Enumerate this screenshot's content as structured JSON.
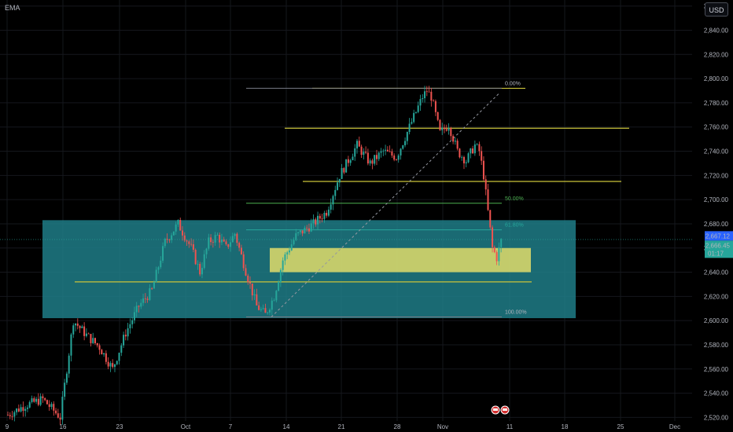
{
  "indicator": "EMA",
  "currency": "USD",
  "price_tag": {
    "value": "2,667.12",
    "color": "#2962ff"
  },
  "last_tag": {
    "value": "2,666.45",
    "time": "01:17",
    "color": "#26a69a"
  },
  "fib_labels": {
    "level_0": "0.00%",
    "level_50": "50.00%",
    "level_618": "61.80%",
    "level_100": "100.00%"
  },
  "colors": {
    "up": "#26a69a",
    "down": "#ef5350",
    "zone": "#1f7c87",
    "box": "#d6d66a",
    "line": "#c9c23a"
  },
  "chart_data": {
    "type": "candlestick",
    "y_ticks": [
      "2,520.00",
      "2,540.00",
      "2,560.00",
      "2,580.00",
      "2,600.00",
      "2,620.00",
      "2,640.00",
      "2,660.00",
      "2,680.00",
      "2,700.00",
      "2,720.00",
      "2,740.00",
      "2,760.00",
      "2,780.00",
      "2,800.00",
      "2,820.00",
      "2,840.00",
      "2,860.00"
    ],
    "y_tick_values": [
      2520,
      2540,
      2560,
      2580,
      2600,
      2620,
      2640,
      2660,
      2680,
      2700,
      2720,
      2740,
      2760,
      2780,
      2800,
      2820,
      2840,
      2860
    ],
    "ylim": [
      2517,
      2865
    ],
    "x_ticks": [
      "9",
      "16",
      "23",
      "Oct",
      "7",
      "14",
      "21",
      "28",
      "Nov",
      "11",
      "18",
      "25",
      "Dec"
    ],
    "price_path": [
      [
        0,
        2522
      ],
      [
        4,
        2530
      ],
      [
        8,
        2535
      ],
      [
        12,
        2520
      ],
      [
        15,
        2600
      ],
      [
        18,
        2588
      ],
      [
        21,
        2578
      ],
      [
        24,
        2560
      ],
      [
        27,
        2590
      ],
      [
        30,
        2612
      ],
      [
        33,
        2625
      ],
      [
        36,
        2665
      ],
      [
        39,
        2680
      ],
      [
        42,
        2660
      ],
      [
        44,
        2640
      ],
      [
        46,
        2665
      ],
      [
        48,
        2670
      ],
      [
        50,
        2660
      ],
      [
        52,
        2672
      ],
      [
        55,
        2635
      ],
      [
        57,
        2612
      ],
      [
        59,
        2605
      ],
      [
        61,
        2620
      ],
      [
        63,
        2650
      ],
      [
        66,
        2670
      ],
      [
        70,
        2680
      ],
      [
        73,
        2690
      ],
      [
        76,
        2720
      ],
      [
        80,
        2745
      ],
      [
        83,
        2730
      ],
      [
        86,
        2740
      ],
      [
        89,
        2735
      ],
      [
        92,
        2760
      ],
      [
        95,
        2785
      ],
      [
        96,
        2790
      ],
      [
        97,
        2785
      ],
      [
        99,
        2755
      ],
      [
        101,
        2762
      ],
      [
        103,
        2740
      ],
      [
        105,
        2732
      ],
      [
        107,
        2745
      ],
      [
        108,
        2740
      ],
      [
        109,
        2720
      ],
      [
        110,
        2690
      ],
      [
        111,
        2660
      ],
      [
        112,
        2652
      ],
      [
        113,
        2666
      ]
    ],
    "zone": {
      "y_top": 2683,
      "y_bottom": 2602
    },
    "box": {
      "y_top": 2660,
      "y_bottom": 2640
    },
    "horizontal_levels": [
      2792,
      2759,
      2715,
      2632
    ],
    "fib_levels": {
      "level_0": 2792,
      "level_50": 2697,
      "level_618": 2675,
      "level_100": 2603
    }
  }
}
